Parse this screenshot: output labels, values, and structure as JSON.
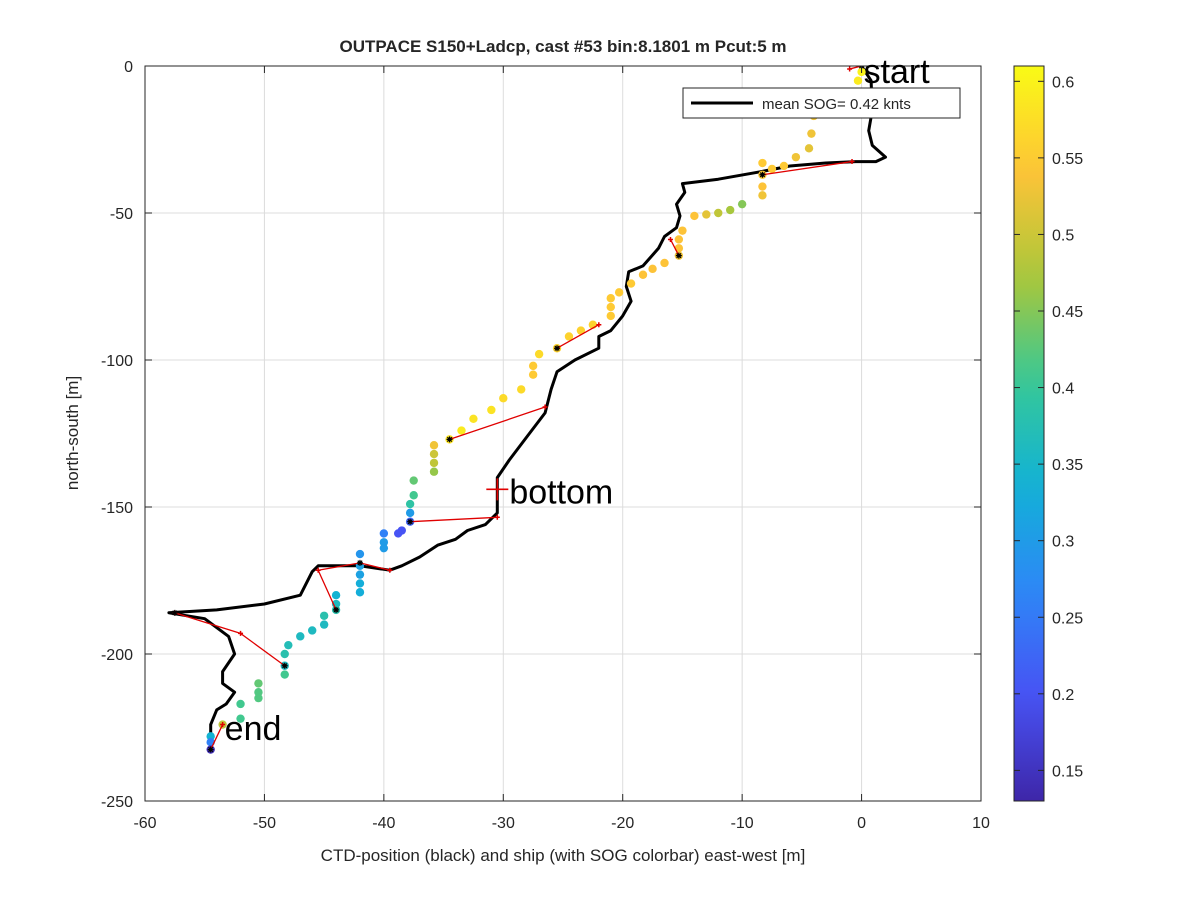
{
  "chart_data": {
    "type": "scatter",
    "title": "OUTPACE S150+Ladcp, cast #53 bin:8.1801 m  Pcut:5 m",
    "xlabel": "CTD-position (black) and ship (with SOG colorbar) east-west [m]",
    "ylabel": "north-south [m]",
    "xlim": [
      -60,
      10
    ],
    "ylim": [
      -250,
      0
    ],
    "x_ticks": [
      -60,
      -50,
      -40,
      -30,
      -20,
      -10,
      0,
      10
    ],
    "y_ticks": [
      0,
      -50,
      -100,
      -150,
      -200,
      -250
    ],
    "x_tick_labels": [
      "-60",
      "-50",
      "-40",
      "-30",
      "-20",
      "-10",
      "0",
      "10"
    ],
    "y_tick_labels": [
      "0",
      "-50",
      "-100",
      "-150",
      "-200",
      "-250"
    ],
    "grid": true,
    "legend": {
      "position": "top-right",
      "entries": [
        "mean SOG=  0.42 knts"
      ]
    },
    "colorbar": {
      "position": "right",
      "colormap": "parula",
      "range": [
        0.13,
        0.61
      ],
      "ticks": [
        0.15,
        0.2,
        0.25,
        0.3,
        0.35,
        0.4,
        0.45,
        0.5,
        0.55,
        0.6
      ],
      "tick_labels": [
        "0.15",
        "0.2",
        "0.25",
        "0.3",
        "0.35",
        "0.4",
        "0.45",
        "0.5",
        "0.55",
        "0.6"
      ]
    },
    "annotations": [
      {
        "text": "start",
        "x": 0,
        "y": 0
      },
      {
        "text": "bottom",
        "x": -30.5,
        "y": -144
      },
      {
        "text": "end",
        "x": -54.5,
        "y": -232
      }
    ],
    "bottom_marker": {
      "x": -30.5,
      "y": -144
    },
    "ctd_track": [
      [
        0,
        0
      ],
      [
        0.8,
        -5
      ],
      [
        0.9,
        -15
      ],
      [
        0.6,
        -22
      ],
      [
        0.9,
        -27
      ],
      [
        2,
        -31
      ],
      [
        1.2,
        -32.5
      ],
      [
        -0.5,
        -32.5
      ],
      [
        -3,
        -33
      ],
      [
        -6,
        -34
      ],
      [
        -8.5,
        -36
      ],
      [
        -12,
        -38.5
      ],
      [
        -15,
        -40
      ],
      [
        -14.8,
        -43
      ],
      [
        -15.5,
        -47
      ],
      [
        -15.2,
        -51
      ],
      [
        -15.5,
        -55
      ],
      [
        -16.5,
        -58
      ],
      [
        -17,
        -62
      ],
      [
        -18.3,
        -68
      ],
      [
        -19.5,
        -70
      ],
      [
        -19.7,
        -75
      ],
      [
        -19.3,
        -80
      ],
      [
        -20,
        -85
      ],
      [
        -21,
        -90
      ],
      [
        -22,
        -92
      ],
      [
        -22,
        -96
      ],
      [
        -24,
        -100
      ],
      [
        -25.5,
        -104
      ],
      [
        -26,
        -110
      ],
      [
        -26.5,
        -118
      ],
      [
        -28,
        -126
      ],
      [
        -29.5,
        -134
      ],
      [
        -30.5,
        -140
      ],
      [
        -30.5,
        -146
      ],
      [
        -30.5,
        -152
      ],
      [
        -31.5,
        -156
      ],
      [
        -33,
        -158
      ],
      [
        -34,
        -161
      ],
      [
        -35.5,
        -163
      ],
      [
        -37,
        -167
      ],
      [
        -38.5,
        -170
      ],
      [
        -39.5,
        -171.5
      ],
      [
        -42,
        -170
      ],
      [
        -44,
        -170
      ],
      [
        -45.5,
        -170
      ],
      [
        -46,
        -172
      ],
      [
        -47,
        -180
      ],
      [
        -50,
        -183
      ],
      [
        -54,
        -185
      ],
      [
        -58,
        -186
      ],
      [
        -55,
        -188
      ],
      [
        -53,
        -194
      ],
      [
        -52.5,
        -200
      ],
      [
        -53.5,
        -206
      ],
      [
        -53.5,
        -210
      ],
      [
        -52.5,
        -213
      ],
      [
        -53.2,
        -217
      ],
      [
        -54,
        -219
      ],
      [
        -54.5,
        -224
      ],
      [
        -54.5,
        -232
      ]
    ],
    "ship_points": [
      {
        "x": 0,
        "y": -2,
        "sog": 0.6
      },
      {
        "x": -0.3,
        "y": -5,
        "sog": 0.59
      },
      {
        "x": -4,
        "y": -17,
        "sog": 0.53
      },
      {
        "x": -4.2,
        "y": -23,
        "sog": 0.53
      },
      {
        "x": -4.4,
        "y": -28,
        "sog": 0.52
      },
      {
        "x": -5.5,
        "y": -31,
        "sog": 0.53
      },
      {
        "x": -6.5,
        "y": -34,
        "sog": 0.55
      },
      {
        "x": -7.5,
        "y": -35,
        "sog": 0.55
      },
      {
        "x": -8.3,
        "y": -33,
        "sog": 0.55
      },
      {
        "x": -8.3,
        "y": -37,
        "sog": 0.55
      },
      {
        "x": -8.3,
        "y": -41,
        "sog": 0.54
      },
      {
        "x": -8.3,
        "y": -44,
        "sog": 0.53
      },
      {
        "x": -10,
        "y": -47,
        "sog": 0.45
      },
      {
        "x": -11,
        "y": -49,
        "sog": 0.47
      },
      {
        "x": -12,
        "y": -50,
        "sog": 0.49
      },
      {
        "x": -13,
        "y": -50.5,
        "sog": 0.52
      },
      {
        "x": -14,
        "y": -51,
        "sog": 0.54
      },
      {
        "x": -15,
        "y": -56,
        "sog": 0.54
      },
      {
        "x": -15.3,
        "y": -59,
        "sog": 0.54
      },
      {
        "x": -15.3,
        "y": -62,
        "sog": 0.54
      },
      {
        "x": -15.3,
        "y": -64.5,
        "sog": 0.53
      },
      {
        "x": -16.5,
        "y": -67,
        "sog": 0.54
      },
      {
        "x": -17.5,
        "y": -69,
        "sog": 0.54
      },
      {
        "x": -18.3,
        "y": -71,
        "sog": 0.54
      },
      {
        "x": -19.3,
        "y": -74,
        "sog": 0.55
      },
      {
        "x": -20.3,
        "y": -77,
        "sog": 0.55
      },
      {
        "x": -21,
        "y": -79,
        "sog": 0.55
      },
      {
        "x": -21,
        "y": -82,
        "sog": 0.55
      },
      {
        "x": -21,
        "y": -85,
        "sog": 0.55
      },
      {
        "x": -22.5,
        "y": -88,
        "sog": 0.56
      },
      {
        "x": -23.5,
        "y": -90,
        "sog": 0.56
      },
      {
        "x": -24.5,
        "y": -92,
        "sog": 0.56
      },
      {
        "x": -25.5,
        "y": -96,
        "sog": 0.56
      },
      {
        "x": -27,
        "y": -98,
        "sog": 0.57
      },
      {
        "x": -27.5,
        "y": -102,
        "sog": 0.55
      },
      {
        "x": -27.5,
        "y": -105,
        "sog": 0.55
      },
      {
        "x": -28.5,
        "y": -110,
        "sog": 0.57
      },
      {
        "x": -30,
        "y": -113,
        "sog": 0.57
      },
      {
        "x": -31,
        "y": -117,
        "sog": 0.58
      },
      {
        "x": -32.5,
        "y": -120,
        "sog": 0.58
      },
      {
        "x": -33.5,
        "y": -124,
        "sog": 0.59
      },
      {
        "x": -34.5,
        "y": -127,
        "sog": 0.58
      },
      {
        "x": -35.8,
        "y": -129,
        "sog": 0.53
      },
      {
        "x": -35.8,
        "y": -132,
        "sog": 0.5
      },
      {
        "x": -35.8,
        "y": -135,
        "sog": 0.49
      },
      {
        "x": -35.8,
        "y": -138,
        "sog": 0.46
      },
      {
        "x": -37.5,
        "y": -141,
        "sog": 0.43
      },
      {
        "x": -37.5,
        "y": -146,
        "sog": 0.41
      },
      {
        "x": -37.8,
        "y": -149,
        "sog": 0.39
      },
      {
        "x": -37.8,
        "y": -152,
        "sog": 0.3
      },
      {
        "x": -37.8,
        "y": -155,
        "sog": 0.22
      },
      {
        "x": -38.5,
        "y": -158,
        "sog": 0.2
      },
      {
        "x": -38.8,
        "y": -159,
        "sog": 0.2
      },
      {
        "x": -40,
        "y": -159,
        "sog": 0.26
      },
      {
        "x": -40,
        "y": -162,
        "sog": 0.3
      },
      {
        "x": -40,
        "y": -164,
        "sog": 0.3
      },
      {
        "x": -42,
        "y": -166,
        "sog": 0.29
      },
      {
        "x": -42,
        "y": -170,
        "sog": 0.31
      },
      {
        "x": -42,
        "y": -173,
        "sog": 0.31
      },
      {
        "x": -42,
        "y": -176,
        "sog": 0.33
      },
      {
        "x": -42,
        "y": -179,
        "sog": 0.33
      },
      {
        "x": -44,
        "y": -180,
        "sog": 0.34
      },
      {
        "x": -44,
        "y": -183,
        "sog": 0.36
      },
      {
        "x": -44,
        "y": -185,
        "sog": 0.38
      },
      {
        "x": -45,
        "y": -187,
        "sog": 0.38
      },
      {
        "x": -45,
        "y": -190,
        "sog": 0.36
      },
      {
        "x": -46,
        "y": -192,
        "sog": 0.36
      },
      {
        "x": -47,
        "y": -194,
        "sog": 0.36
      },
      {
        "x": -48,
        "y": -197,
        "sog": 0.37
      },
      {
        "x": -48.3,
        "y": -200,
        "sog": 0.38
      },
      {
        "x": -48.3,
        "y": -204,
        "sog": 0.36
      },
      {
        "x": -48.3,
        "y": -207,
        "sog": 0.41
      },
      {
        "x": -50.5,
        "y": -210,
        "sog": 0.43
      },
      {
        "x": -50.5,
        "y": -213,
        "sog": 0.42
      },
      {
        "x": -50.5,
        "y": -215,
        "sog": 0.42
      },
      {
        "x": -52,
        "y": -217,
        "sog": 0.41
      },
      {
        "x": -52,
        "y": -222,
        "sog": 0.41
      },
      {
        "x": -53.5,
        "y": -224,
        "sog": 0.49
      },
      {
        "x": -54.5,
        "y": -228,
        "sog": 0.34
      },
      {
        "x": -54.5,
        "y": -230,
        "sog": 0.26
      },
      {
        "x": -54.5,
        "y": -232.5,
        "sog": 0.14
      }
    ],
    "connector_segments": [
      [
        [
          -1,
          -1
        ],
        [
          0,
          0
        ]
      ],
      [
        [
          -0.8,
          -32.5
        ],
        [
          -8.3,
          -37
        ]
      ],
      [
        [
          -16,
          -59
        ],
        [
          -15.3,
          -64.5
        ]
      ],
      [
        [
          -25.5,
          -96
        ],
        [
          -22,
          -88
        ]
      ],
      [
        [
          -34.5,
          -127
        ],
        [
          -26.5,
          -116
        ]
      ],
      [
        [
          -37.8,
          -155
        ],
        [
          -30.5,
          -153.5
        ]
      ],
      [
        [
          -39.5,
          -171.5
        ],
        [
          -42,
          -169
        ]
      ],
      [
        [
          -45.5,
          -171.5
        ],
        [
          -44,
          -185
        ]
      ],
      [
        [
          -45.5,
          -171.5
        ],
        [
          -42,
          -169
        ]
      ],
      [
        [
          -57.5,
          -186
        ],
        [
          -52,
          -193
        ]
      ],
      [
        [
          -52,
          -193
        ],
        [
          -48.3,
          -204
        ]
      ],
      [
        [
          -53.5,
          -224
        ],
        [
          -54.5,
          -232.5
        ]
      ]
    ],
    "red_markers": [
      [
        -1,
        -1
      ],
      [
        -0.8,
        -32.5
      ],
      [
        -16,
        -59
      ],
      [
        -22,
        -88
      ],
      [
        -26.5,
        -116
      ],
      [
        -30.5,
        -153.5
      ],
      [
        -39.5,
        -171.5
      ],
      [
        -45.5,
        -171.5
      ],
      [
        -57.5,
        -186
      ],
      [
        -52,
        -193
      ],
      [
        -53.5,
        -224
      ]
    ],
    "black_markers": [
      [
        0,
        0
      ],
      [
        -8.3,
        -37
      ],
      [
        -15.3,
        -64.5
      ],
      [
        -25.5,
        -96
      ],
      [
        -34.5,
        -127
      ],
      [
        -37.8,
        -155
      ],
      [
        -42,
        -169
      ],
      [
        -44,
        -185
      ],
      [
        -57.5,
        -186
      ],
      [
        -48.3,
        -204
      ],
      [
        -54.5,
        -232.5
      ]
    ]
  }
}
